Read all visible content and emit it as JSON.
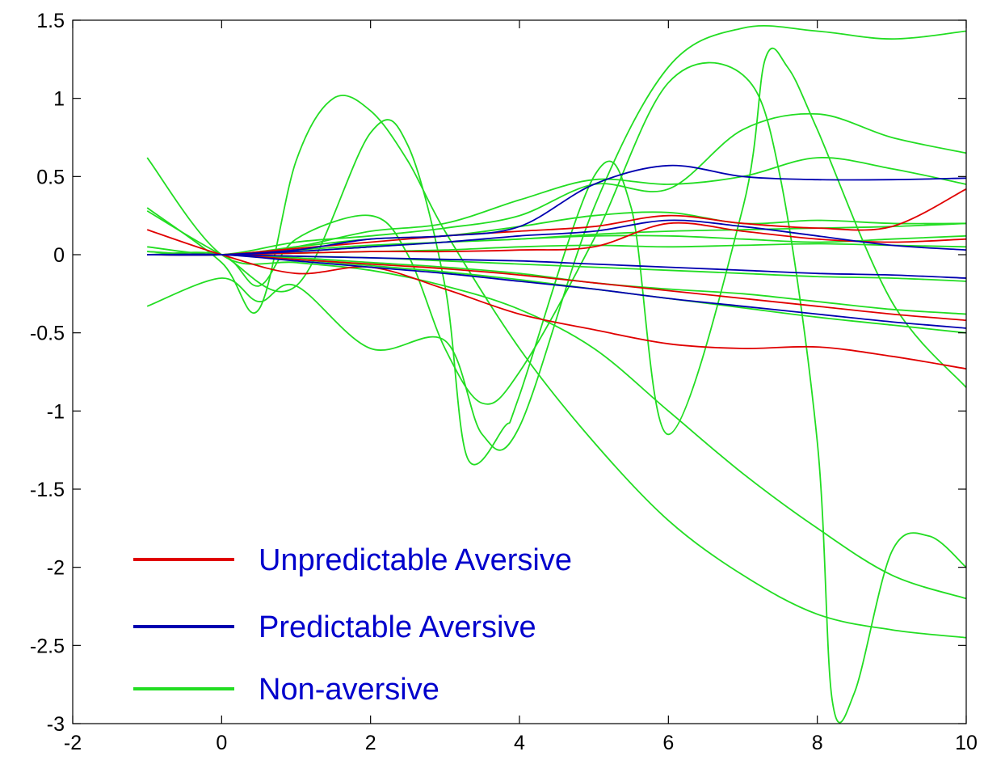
{
  "chart_data": {
    "type": "line",
    "title": "",
    "xlabel": "",
    "ylabel": "",
    "xlim": [
      -2,
      10
    ],
    "ylim": [
      -3,
      1.5
    ],
    "xticks": [
      -2,
      0,
      2,
      4,
      6,
      8,
      10
    ],
    "yticks": [
      1.5,
      1,
      0.5,
      0,
      -0.5,
      -1,
      -1.5,
      -2,
      -2.5,
      -3
    ],
    "xtick_labels": [
      "-2",
      "0",
      "2",
      "4",
      "6",
      "8",
      "10"
    ],
    "ytick_labels": [
      "1.5",
      "1",
      "0.5",
      "0",
      "-0.5",
      "-1",
      "-1.5",
      "-2",
      "-2.5",
      "-3"
    ],
    "grid": false,
    "legend_position": "bottom-left",
    "legend": [
      {
        "label": "Unpredictable Aversive",
        "color": "#e00000"
      },
      {
        "label": "Predictable Aversive",
        "color": "#0000b0"
      },
      {
        "label": "Non-aversive",
        "color": "#22dd22"
      }
    ],
    "series": [
      {
        "group": "Non-aversive",
        "color": "#22dd22",
        "x": [
          -1,
          0,
          1,
          2,
          3,
          4,
          5,
          6,
          7,
          8,
          9,
          10
        ],
        "y": [
          0.62,
          0.0,
          -0.05,
          -0.1,
          -0.2,
          -0.35,
          -0.6,
          -1.0,
          -1.4,
          -1.75,
          -2.05,
          -2.2
        ]
      },
      {
        "group": "Non-aversive",
        "color": "#22dd22",
        "x": [
          -1,
          0,
          0.5,
          1,
          1.5,
          2,
          2.5,
          3,
          4,
          5,
          6,
          7,
          8,
          9,
          10
        ],
        "y": [
          0.3,
          -0.05,
          -0.35,
          0.6,
          1.0,
          0.92,
          0.6,
          0.15,
          -0.6,
          -1.2,
          -1.7,
          -2.05,
          -2.3,
          -2.4,
          -2.45
        ]
      },
      {
        "group": "Non-aversive",
        "color": "#22dd22",
        "x": [
          -1,
          0,
          0.5,
          1,
          2,
          2.5,
          3,
          3.5,
          4,
          5,
          6,
          7,
          7.5,
          8,
          8.2,
          8.5,
          9,
          9.5,
          10
        ],
        "y": [
          0.0,
          0.0,
          -0.2,
          0.1,
          0.25,
          0.0,
          -0.6,
          -0.95,
          -0.75,
          0.1,
          1.1,
          1.15,
          0.5,
          -1.2,
          -2.85,
          -2.8,
          -1.9,
          -1.8,
          -2.0
        ]
      },
      {
        "group": "Non-aversive",
        "color": "#22dd22",
        "x": [
          -1,
          0,
          0.5,
          1,
          2,
          3,
          3.5,
          4,
          5,
          6,
          7,
          8,
          9,
          10
        ],
        "y": [
          -0.33,
          -0.15,
          -0.3,
          -0.2,
          -0.6,
          -0.55,
          -1.15,
          -1.1,
          0.3,
          1.2,
          1.45,
          1.43,
          1.38,
          1.43
        ]
      },
      {
        "group": "Non-aversive",
        "color": "#22dd22",
        "x": [
          -1,
          0,
          1,
          2,
          2.5,
          3,
          3.3,
          3.8,
          4,
          5,
          5.5,
          6,
          7,
          7.3,
          7.6,
          8,
          9,
          10
        ],
        "y": [
          0.28,
          0.0,
          -0.2,
          0.78,
          0.7,
          -0.2,
          -1.3,
          -1.1,
          -0.9,
          0.5,
          0.3,
          -1.15,
          0.3,
          1.25,
          1.2,
          0.8,
          -0.3,
          -0.85
        ]
      },
      {
        "group": "Non-aversive",
        "color": "#22dd22",
        "x": [
          -1,
          0,
          1,
          2,
          3,
          4,
          5,
          6,
          7,
          8,
          9,
          10
        ],
        "y": [
          0.02,
          0.0,
          0.05,
          0.15,
          0.2,
          0.35,
          0.48,
          0.45,
          0.5,
          0.62,
          0.55,
          0.45
        ]
      },
      {
        "group": "Non-aversive",
        "color": "#22dd22",
        "x": [
          -1,
          0,
          1,
          2,
          3,
          4,
          5,
          6,
          7,
          8,
          9,
          10
        ],
        "y": [
          0.02,
          0.0,
          0.08,
          0.12,
          0.17,
          0.25,
          0.45,
          0.42,
          0.8,
          0.9,
          0.75,
          0.65
        ]
      },
      {
        "group": "Non-aversive",
        "color": "#22dd22",
        "x": [
          -1,
          0,
          1,
          2,
          3,
          4,
          5,
          6,
          7,
          8,
          9,
          10
        ],
        "y": [
          0.05,
          0.0,
          0.05,
          0.1,
          0.12,
          0.18,
          0.25,
          0.27,
          0.2,
          0.22,
          0.2,
          0.2
        ]
      },
      {
        "group": "Non-aversive",
        "color": "#22dd22",
        "x": [
          -1,
          0,
          1,
          2,
          3,
          4,
          5,
          6,
          7,
          8,
          9,
          10
        ],
        "y": [
          0.0,
          0.0,
          0.02,
          0.05,
          0.08,
          0.1,
          0.12,
          0.12,
          0.1,
          0.08,
          0.1,
          0.12
        ]
      },
      {
        "group": "Non-aversive",
        "color": "#22dd22",
        "x": [
          -1,
          0,
          1,
          2,
          3,
          4,
          5,
          6,
          7,
          8,
          9,
          10
        ],
        "y": [
          0.0,
          0.0,
          -0.02,
          -0.05,
          -0.08,
          -0.12,
          -0.18,
          -0.22,
          -0.25,
          -0.3,
          -0.35,
          -0.38
        ]
      },
      {
        "group": "Non-aversive",
        "color": "#22dd22",
        "x": [
          -1,
          0,
          1,
          2,
          3,
          4,
          5,
          6,
          7,
          8,
          9,
          10
        ],
        "y": [
          0.0,
          0.0,
          -0.03,
          -0.07,
          -0.11,
          -0.16,
          -0.22,
          -0.28,
          -0.34,
          -0.4,
          -0.45,
          -0.5
        ]
      },
      {
        "group": "Non-aversive",
        "color": "#22dd22",
        "x": [
          -1,
          0,
          1,
          2,
          3,
          4,
          5,
          6,
          7,
          8,
          9,
          10
        ],
        "y": [
          0.0,
          0.0,
          0.01,
          0.02,
          0.03,
          0.05,
          0.06,
          0.05,
          0.06,
          0.07,
          0.06,
          0.05
        ]
      },
      {
        "group": "Non-aversive",
        "color": "#22dd22",
        "x": [
          -1,
          0,
          1,
          2,
          3,
          4,
          5,
          6,
          7,
          8,
          9,
          10
        ],
        "y": [
          0.0,
          0.0,
          -0.01,
          -0.02,
          -0.04,
          -0.06,
          -0.08,
          -0.1,
          -0.12,
          -0.14,
          -0.15,
          -0.17
        ]
      },
      {
        "group": "Non-aversive",
        "color": "#22dd22",
        "x": [
          -1,
          0,
          1,
          2,
          3,
          4,
          5,
          6,
          7,
          8,
          9,
          10
        ],
        "y": [
          0.0,
          0.0,
          0.03,
          0.06,
          0.08,
          0.1,
          0.13,
          0.15,
          0.16,
          0.17,
          0.18,
          0.2
        ]
      },
      {
        "group": "Unpredictable Aversive",
        "color": "#e00000",
        "x": [
          -1,
          0,
          1,
          2,
          3,
          4,
          5,
          6,
          7,
          8,
          9,
          10
        ],
        "y": [
          0.16,
          0.0,
          -0.12,
          -0.08,
          -0.22,
          -0.38,
          -0.48,
          -0.57,
          -0.6,
          -0.59,
          -0.65,
          -0.73
        ]
      },
      {
        "group": "Unpredictable Aversive",
        "color": "#e00000",
        "x": [
          -1,
          0,
          1,
          2,
          3,
          4,
          5,
          6,
          7,
          8,
          9,
          10
        ],
        "y": [
          0.0,
          0.0,
          0.04,
          0.08,
          0.12,
          0.15,
          0.18,
          0.25,
          0.2,
          0.17,
          0.18,
          0.42
        ]
      },
      {
        "group": "Unpredictable Aversive",
        "color": "#e00000",
        "x": [
          -1,
          0,
          1,
          2,
          3,
          4,
          5,
          6,
          7,
          8,
          9,
          10
        ],
        "y": [
          0.0,
          0.0,
          -0.03,
          -0.06,
          -0.09,
          -0.13,
          -0.18,
          -0.23,
          -0.28,
          -0.33,
          -0.38,
          -0.42
        ]
      },
      {
        "group": "Unpredictable Aversive",
        "color": "#e00000",
        "x": [
          -1,
          0,
          1,
          2,
          3,
          4,
          5,
          6,
          7,
          8,
          9,
          10
        ],
        "y": [
          0.0,
          0.0,
          0.01,
          0.02,
          0.02,
          0.03,
          0.05,
          0.2,
          0.15,
          0.1,
          0.08,
          0.1
        ]
      },
      {
        "group": "Predictable Aversive",
        "color": "#0000b0",
        "x": [
          -1,
          0,
          1,
          2,
          3,
          4,
          5,
          6,
          7,
          8,
          9,
          10
        ],
        "y": [
          0.0,
          0.0,
          0.03,
          0.1,
          0.12,
          0.18,
          0.45,
          0.57,
          0.5,
          0.48,
          0.48,
          0.49
        ]
      },
      {
        "group": "Predictable Aversive",
        "color": "#0000b0",
        "x": [
          -1,
          0,
          1,
          2,
          3,
          4,
          5,
          6,
          7,
          8,
          9,
          10
        ],
        "y": [
          0.0,
          0.0,
          -0.04,
          -0.08,
          -0.12,
          -0.17,
          -0.22,
          -0.28,
          -0.33,
          -0.38,
          -0.43,
          -0.47
        ]
      },
      {
        "group": "Predictable Aversive",
        "color": "#0000b0",
        "x": [
          -1,
          0,
          1,
          2,
          3,
          4,
          5,
          6,
          7,
          8,
          9,
          10
        ],
        "y": [
          0.0,
          0.0,
          0.02,
          0.05,
          0.08,
          0.12,
          0.15,
          0.22,
          0.18,
          0.12,
          0.06,
          0.03
        ]
      },
      {
        "group": "Predictable Aversive",
        "color": "#0000b0",
        "x": [
          -1,
          0,
          1,
          2,
          3,
          4,
          5,
          6,
          7,
          8,
          9,
          10
        ],
        "y": [
          0.0,
          0.0,
          -0.01,
          -0.02,
          -0.03,
          -0.04,
          -0.06,
          -0.08,
          -0.1,
          -0.12,
          -0.13,
          -0.15
        ]
      }
    ]
  }
}
